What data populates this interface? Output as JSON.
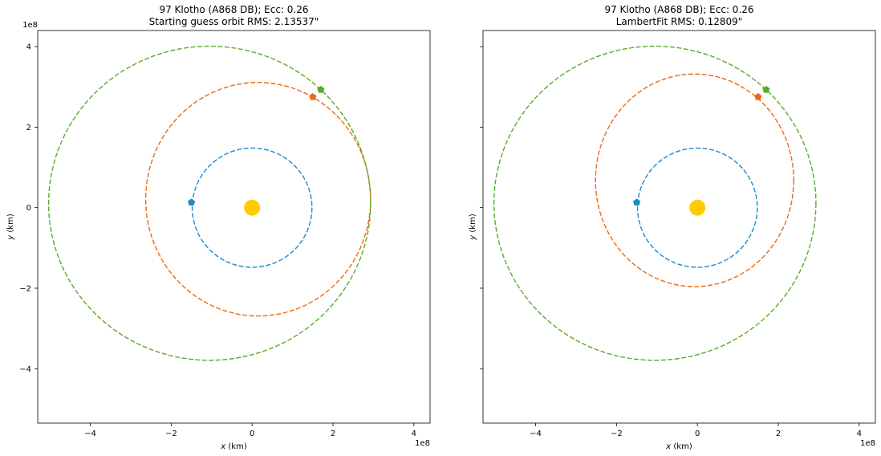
{
  "chart_data": [
    {
      "type": "scatter",
      "title": "97 Klotho (A868 DB); Ecc: 0.26\nStarting guess orbit RMS: 2.13537\"",
      "xlabel": "$x$ (km)",
      "xlabel_base": "x",
      "xlabel_rest": " (km)",
      "ylabel": "$y$ (km)",
      "ylabel_base": "y",
      "ylabel_rest": " (km)",
      "x_offset_label": "1e8",
      "y_offset_label": "1e8",
      "xlim": [
        -5.3,
        4.4
      ],
      "ylim": [
        -5.35,
        4.4
      ],
      "xticks": [
        -4,
        -2,
        0,
        2,
        4
      ],
      "yticks": [
        -4,
        -2,
        0,
        2,
        4
      ],
      "xtick_labels": [
        "−4",
        "−2",
        "0",
        "2",
        "4"
      ],
      "ytick_labels": [
        "−4",
        "−2",
        "0",
        "2",
        "4"
      ],
      "show_ytick_labels": true,
      "grid": false,
      "sun": {
        "x": 0,
        "y": 0,
        "color": "#ffcc00"
      },
      "series": [
        {
          "color": "#1f8ac8",
          "cx": 0.0,
          "cy": 0.0,
          "a": 1.48,
          "b": 1.48,
          "marker": [
            -1.5,
            0.13
          ]
        },
        {
          "color": "#ee6a10",
          "cx": 0.15,
          "cy": 0.21,
          "a": 2.78,
          "b": 2.9,
          "marker": [
            1.5,
            2.75
          ]
        },
        {
          "color": "#5aab2a",
          "cx": -1.05,
          "cy": 0.11,
          "a": 3.98,
          "b": 3.9,
          "marker": [
            1.7,
            2.93
          ]
        }
      ]
    },
    {
      "type": "scatter",
      "title": "97 Klotho (A868 DB); Ecc: 0.26\nLambertFit RMS: 0.12809\"",
      "xlabel": "$x$ (km)",
      "xlabel_base": "x",
      "xlabel_rest": " (km)",
      "ylabel": "$y$ (km)",
      "ylabel_base": "y",
      "ylabel_rest": " (km)",
      "x_offset_label": "1e8",
      "y_offset_label": "",
      "xlim": [
        -5.3,
        4.4
      ],
      "ylim": [
        -5.35,
        4.4
      ],
      "xticks": [
        -4,
        -2,
        0,
        2,
        4
      ],
      "yticks": [
        -4,
        -2,
        0,
        2,
        4
      ],
      "xtick_labels": [
        "−4",
        "−2",
        "0",
        "2",
        "4"
      ],
      "ytick_labels": [
        "",
        "",
        "",
        "",
        ""
      ],
      "show_ytick_labels": false,
      "grid": false,
      "sun": {
        "x": 0,
        "y": 0,
        "color": "#ffcc00"
      },
      "series": [
        {
          "color": "#1f8ac8",
          "cx": 0.0,
          "cy": 0.0,
          "a": 1.48,
          "b": 1.48,
          "marker": [
            -1.5,
            0.13
          ]
        },
        {
          "color": "#ee6a10",
          "cx": -0.07,
          "cy": 0.68,
          "a": 2.45,
          "b": 2.64,
          "marker": [
            1.5,
            2.75
          ]
        },
        {
          "color": "#5aab2a",
          "cx": -1.05,
          "cy": 0.11,
          "a": 3.98,
          "b": 3.9,
          "marker": [
            1.7,
            2.93
          ]
        }
      ]
    }
  ]
}
